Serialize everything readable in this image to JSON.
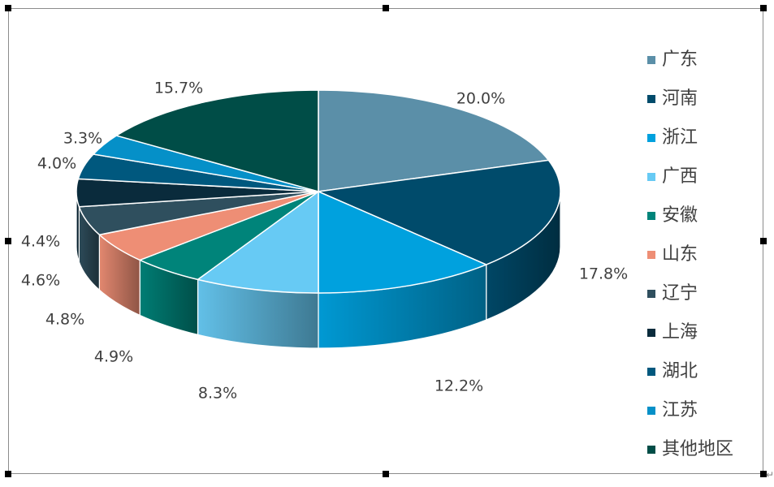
{
  "chart_data": {
    "type": "pie",
    "style": "3d",
    "title": "",
    "legend_position": "right",
    "slices": [
      {
        "name": "广东",
        "value": 20.0,
        "label": "20.0%",
        "color": "#5B8FA8"
      },
      {
        "name": "河南",
        "value": 17.8,
        "label": "17.8%",
        "color": "#004B6B"
      },
      {
        "name": "浙江",
        "value": 12.2,
        "label": "12.2%",
        "color": "#00A1DE"
      },
      {
        "name": "广西",
        "value": 8.3,
        "label": "8.3%",
        "color": "#67CAF4"
      },
      {
        "name": "安徽",
        "value": 4.9,
        "label": "4.9%",
        "color": "#00847A"
      },
      {
        "name": "山东",
        "value": 4.8,
        "label": "4.8%",
        "color": "#EE8E75"
      },
      {
        "name": "辽宁",
        "value": 4.6,
        "label": "4.6%",
        "color": "#2F4F5E"
      },
      {
        "name": "上海",
        "value": 4.4,
        "label": "4.4%",
        "color": "#0A2B3C"
      },
      {
        "name": "湖北",
        "value": 4.0,
        "label": "4.0%",
        "color": "#00587E"
      },
      {
        "name": "江苏",
        "value": 3.3,
        "label": "3.3%",
        "color": "#0590C8"
      },
      {
        "name": "其他地区",
        "value": 15.7,
        "label": "15.7%",
        "color": "#004D47"
      }
    ]
  }
}
